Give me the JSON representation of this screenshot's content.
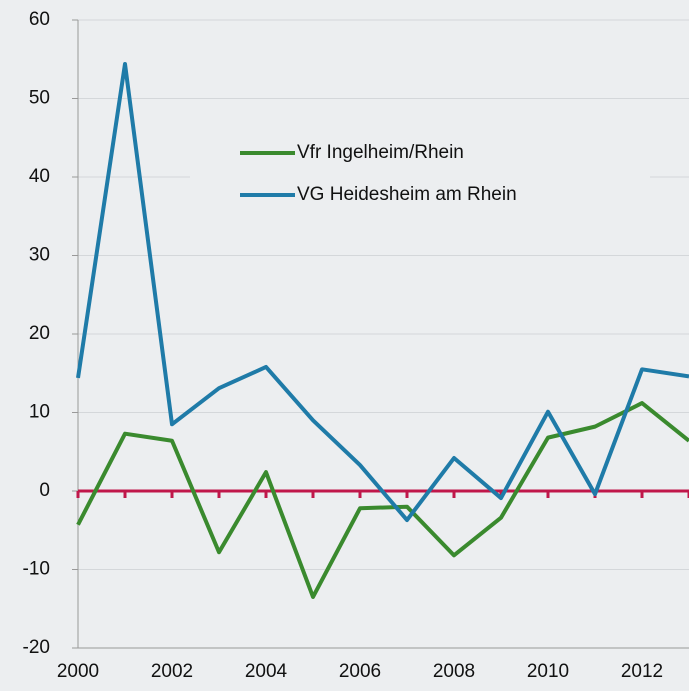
{
  "chart_data": {
    "type": "line",
    "x": [
      2000,
      2001,
      2002,
      2003,
      2004,
      2005,
      2006,
      2007,
      2008,
      2009,
      2010,
      2011,
      2012,
      2013
    ],
    "series": [
      {
        "name": "Vfr Ingelheim/Rhein",
        "color": "#3a8a2e",
        "values": [
          -4.3,
          7.3,
          6.4,
          -7.8,
          2.4,
          -13.5,
          -2.2,
          -2.0,
          -8.2,
          -3.4,
          6.8,
          8.2,
          11.2,
          6.4
        ]
      },
      {
        "name": "VG Heidesheim am Rhein",
        "color": "#1f7ba8",
        "values": [
          14.4,
          54.4,
          8.5,
          13.1,
          15.8,
          9.0,
          3.3,
          -3.7,
          4.2,
          -0.9,
          10.1,
          -0.4,
          15.5,
          14.6
        ]
      }
    ],
    "xlim": [
      2000,
      2013
    ],
    "xticks": [
      2000,
      2002,
      2004,
      2006,
      2008,
      2010,
      2012
    ],
    "ylim": [
      -20,
      60
    ],
    "yticks": [
      -20,
      -10,
      0,
      10,
      20,
      30,
      40,
      50,
      60
    ],
    "grid": true,
    "zero_line_color": "#c0174a"
  }
}
